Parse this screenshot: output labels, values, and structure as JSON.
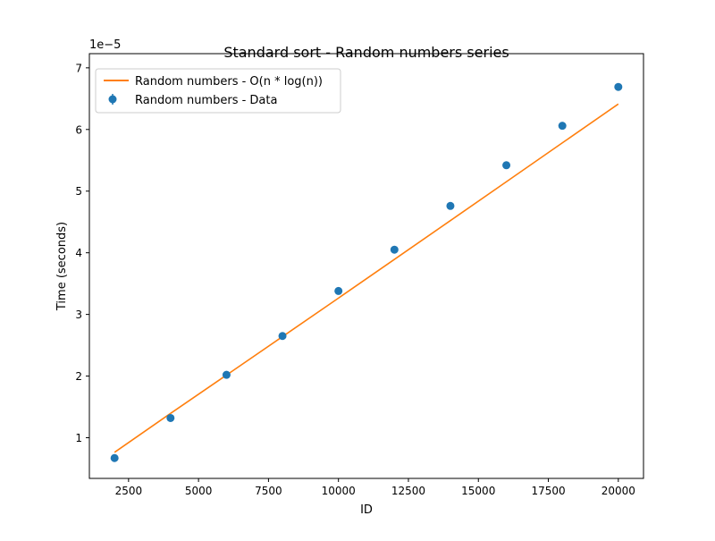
{
  "chart_data": {
    "type": "scatter",
    "title": "Standard sort - Random numbers series",
    "xlabel": "ID",
    "ylabel": "Time (seconds)",
    "y_offset_label": "1e−5",
    "xlim": [
      1100,
      20900
    ],
    "ylim": [
      3.4e-06,
      7.23e-05
    ],
    "x_ticks": [
      2500,
      5000,
      7500,
      10000,
      12500,
      15000,
      17500,
      20000
    ],
    "x_tick_labels": [
      "2500",
      "5000",
      "7500",
      "10000",
      "12500",
      "15000",
      "17500",
      "20000"
    ],
    "y_ticks": [
      1e-05,
      2e-05,
      3e-05,
      4e-05,
      5e-05,
      6e-05,
      7e-05
    ],
    "y_tick_labels": [
      "1",
      "2",
      "3",
      "4",
      "5",
      "6",
      "7"
    ],
    "grid": false,
    "legend_position": "top-left",
    "series": [
      {
        "name": "Random numbers - O(n * log(n))",
        "kind": "line",
        "color": "#ff7f0e",
        "x": [
          2000,
          4000,
          6000,
          8000,
          10000,
          12000,
          14000,
          16000,
          18000,
          20000
        ],
        "y": [
          7.63e-06,
          1.394e-05,
          2.016e-05,
          2.64e-05,
          3.265e-05,
          3.893e-05,
          4.522e-05,
          5.152e-05,
          5.783e-05,
          6.413e-05
        ]
      },
      {
        "name": "Random numbers - Data",
        "kind": "errorbar",
        "color": "#1f77b4",
        "x": [
          2000,
          4000,
          6000,
          8000,
          10000,
          12000,
          14000,
          16000,
          18000,
          20000
        ],
        "y": [
          6.7e-06,
          1.32e-05,
          2.02e-05,
          2.65e-05,
          3.38e-05,
          4.05e-05,
          4.76e-05,
          5.42e-05,
          6.06e-05,
          6.69e-05
        ],
        "yerr": [
          1e-07,
          1e-07,
          1e-07,
          1e-07,
          1e-07,
          1e-07,
          1e-07,
          1e-07,
          1e-07,
          1e-07
        ]
      }
    ]
  }
}
